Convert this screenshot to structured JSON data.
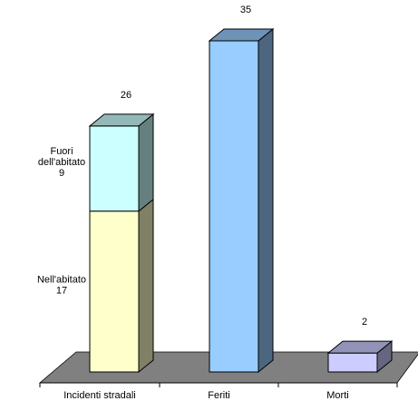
{
  "chart_data": {
    "type": "bar",
    "stacked": true,
    "three_d": true,
    "title": "",
    "xlabel": "",
    "ylabel": "",
    "ylim": [
      0,
      35
    ],
    "grid": false,
    "legend": "none",
    "categories": [
      "Incidenti stradali",
      "Feriti",
      "Morti"
    ],
    "totals": [
      "26",
      "35",
      "2"
    ],
    "series": [
      {
        "values": [
          17,
          35,
          2
        ],
        "colors": [
          "#ffffcc",
          "#99ccff",
          "#ccccff"
        ]
      },
      {
        "values": [
          9,
          0,
          0
        ],
        "colors": [
          "#ccffff",
          "",
          ""
        ]
      }
    ],
    "segment_labels": [
      {
        "category": 0,
        "series": 0,
        "lines": [
          "Nell'abitato",
          "17"
        ]
      },
      {
        "category": 0,
        "series": 1,
        "lines": [
          "Fuori",
          "dell'abitato",
          "9"
        ]
      }
    ],
    "floor_color": "#808080"
  }
}
